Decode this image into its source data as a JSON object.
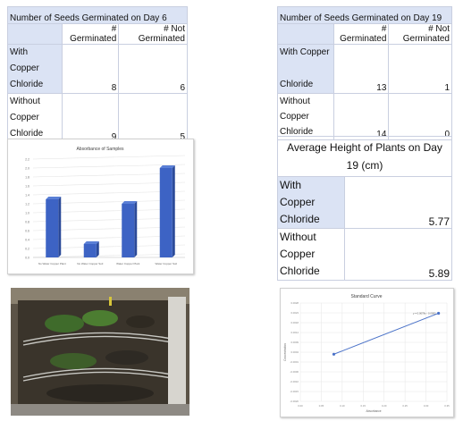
{
  "table_day6": {
    "title": "Number of Seeds Germinated on Day 6",
    "col1": "# Germinated",
    "col2": "# Not Germinated",
    "rows": [
      {
        "label_lines": [
          "With",
          "Copper",
          "Chloride"
        ],
        "germinated": "8",
        "not_germinated": "6"
      },
      {
        "label_lines": [
          "Without",
          "Copper",
          "Chloride"
        ],
        "germinated": "9",
        "not_germinated": "5"
      }
    ]
  },
  "table_day19": {
    "title": "Number of Seeds Germinated on Day 19",
    "col1": "# Germinated",
    "col2": "# Not Germinated",
    "rows": [
      {
        "label_lines": [
          "With Copper",
          "",
          "Chloride"
        ],
        "germinated": "13",
        "not_germinated": "1"
      },
      {
        "label_lines": [
          "Without",
          "Copper",
          "Chloride"
        ],
        "germinated": "14",
        "not_germinated": "0"
      }
    ]
  },
  "height_table": {
    "title_line1": "Average Height of Plants on Day",
    "title_line2": "19 (cm)",
    "rows": [
      {
        "label_lines": [
          "With",
          "Copper",
          "Chloride"
        ],
        "value": "5.77"
      },
      {
        "label_lines": [
          "Without",
          "Copper",
          "Chloride"
        ],
        "value": "5.89"
      }
    ]
  },
  "chart_data": [
    {
      "type": "bar",
      "title": "Absorbance of Samples",
      "categories": [
        "No Water Copper Plant",
        "No Water Copper Soil",
        "Water Copper Plant",
        "Water Copper Soil"
      ],
      "values": [
        1.3,
        0.3,
        1.2,
        2.0
      ],
      "ylim": [
        0,
        2.2
      ],
      "color": "#3d63c4"
    },
    {
      "type": "line",
      "title": "Standard Curve",
      "xlabel": "Absorbance",
      "ylabel": "Concentration",
      "x": [
        0.08,
        0.33
      ],
      "y": [
        0.0003,
        0.0023
      ],
      "xlim": [
        0,
        0.35
      ],
      "ylim": [
        -0.002,
        0.0028
      ],
      "annotation": "y = 0.0078x - 0.0002",
      "color": "#4a72c8"
    }
  ],
  "photo": {
    "caption_icon": "seedling-incubator-photo"
  }
}
